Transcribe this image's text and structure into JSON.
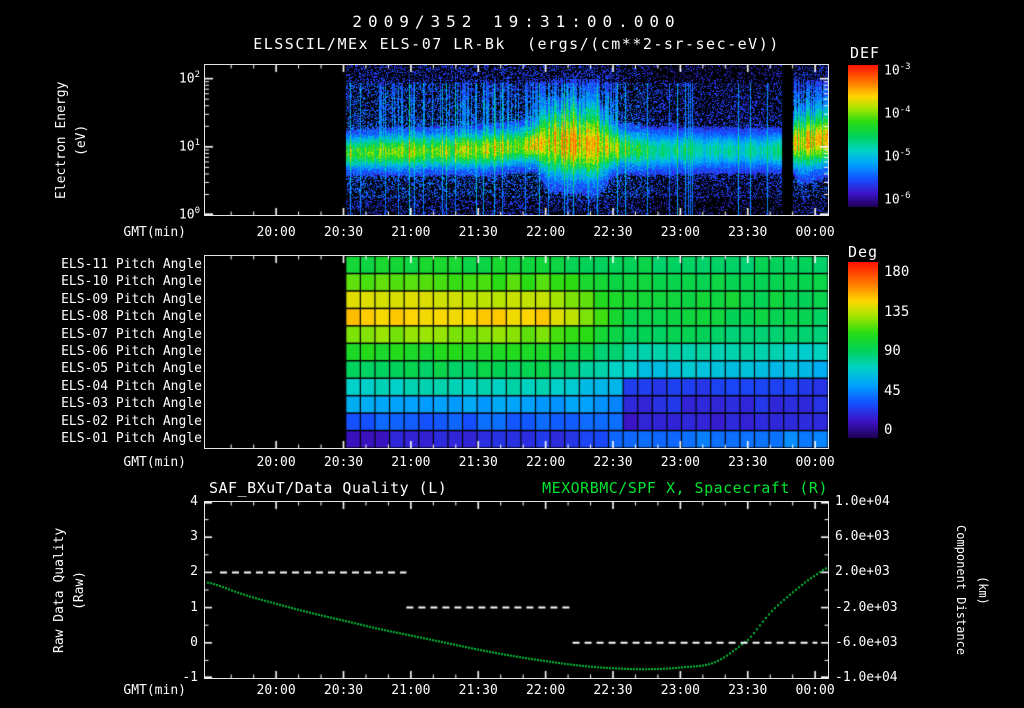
{
  "header": {
    "title_line1": "2009/352 19:31:00.000",
    "title_line2": "ELSSCIL/MEx ELS-07 LR-Bk  (ergs/(cm**2-sr-sec-eV))"
  },
  "time_axis": {
    "label": "GMT(min)",
    "start_label": "19:31",
    "ticks": [
      {
        "label": "20:00",
        "t_min": 29
      },
      {
        "label": "20:30",
        "t_min": 59
      },
      {
        "label": "21:00",
        "t_min": 89
      },
      {
        "label": "21:30",
        "t_min": 119
      },
      {
        "label": "22:00",
        "t_min": 149
      },
      {
        "label": "22:30",
        "t_min": 179
      },
      {
        "label": "23:00",
        "t_min": 209
      },
      {
        "label": "23:30",
        "t_min": 239
      },
      {
        "label": "00:00",
        "t_min": 269
      }
    ]
  },
  "panel1": {
    "ylabel_line1": "Electron Energy",
    "ylabel_line2": "(eV)",
    "y_tick_exponents": [
      2,
      1,
      0
    ],
    "colorbar": {
      "label": "DEF",
      "tick_exponents": [
        -3,
        -4,
        -5,
        -6
      ]
    }
  },
  "panel2": {
    "row_labels": [
      "ELS-11 Pitch Angle",
      "ELS-10 Pitch Angle",
      "ELS-09 Pitch Angle",
      "ELS-08 Pitch Angle",
      "ELS-07 Pitch Angle",
      "ELS-06 Pitch Angle",
      "ELS-05 Pitch Angle",
      "ELS-04 Pitch Angle",
      "ELS-03 Pitch Angle",
      "ELS-02 Pitch Angle",
      "ELS-01 Pitch Angle"
    ],
    "colorbar": {
      "label": "Deg",
      "ticks": [
        "180",
        "135",
        "90",
        "45",
        "0"
      ]
    }
  },
  "panel3": {
    "title_left": "SAF_BXuT/Data Quality (L)",
    "title_right": "MEXORBMC/SPF X, Spacecraft (R)",
    "ylabel_left_line1": "Raw Data Quality",
    "ylabel_left_line2": "(Raw)",
    "ylabel_right_line1": "Component Distance",
    "ylabel_right_line2": "(km)",
    "left_ticks": [
      "4",
      "3",
      "2",
      "1",
      "0",
      "-1"
    ],
    "right_ticks": [
      "1.0e+04",
      "6.0e+03",
      "2.0e+03",
      "-2.0e+03",
      "-6.0e+03",
      "-1.0e+04"
    ]
  },
  "colors": {
    "background": "#000000",
    "text": "#ffffff",
    "green_text": "#00e432",
    "curve_green": "#00c238",
    "colormap_stops": [
      [
        0.0,
        [
          30,
          0,
          80
        ]
      ],
      [
        0.1,
        [
          60,
          20,
          200
        ]
      ],
      [
        0.2,
        [
          20,
          80,
          255
        ]
      ],
      [
        0.3,
        [
          0,
          160,
          255
        ]
      ],
      [
        0.4,
        [
          0,
          210,
          200
        ]
      ],
      [
        0.5,
        [
          0,
          210,
          90
        ]
      ],
      [
        0.6,
        [
          40,
          220,
          20
        ]
      ],
      [
        0.7,
        [
          170,
          230,
          0
        ]
      ],
      [
        0.78,
        [
          255,
          215,
          0
        ]
      ],
      [
        0.87,
        [
          255,
          130,
          0
        ]
      ],
      [
        1.0,
        [
          255,
          20,
          0
        ]
      ]
    ]
  },
  "chart_data": [
    {
      "type": "heatmap",
      "name": "electron-energy-spectrogram",
      "title": "ELSSCIL/MEx ELS-07 LR-Bk",
      "units": "ergs/(cm**2-sr-sec-eV)",
      "ylabel": "Electron Energy (eV)",
      "y_log10_range": [
        0,
        2.2
      ],
      "colorbar_label": "DEF",
      "colorbar_log10_range": [
        -6,
        -3
      ],
      "time_axis_start": "19:31",
      "data_start_min": 60,
      "data_end_min": 275,
      "data_gaps_min": [
        [
          254,
          259
        ]
      ],
      "band_center_log10eV_keypoints": [
        [
          60,
          0.92
        ],
        [
          120,
          0.96
        ],
        [
          150,
          1.05
        ],
        [
          175,
          1.0
        ],
        [
          195,
          0.95
        ],
        [
          255,
          0.95
        ],
        [
          259,
          1.05
        ],
        [
          275,
          1.1
        ]
      ],
      "band_intensity_keypoints": [
        [
          60,
          0.58
        ],
        [
          75,
          0.62
        ],
        [
          110,
          0.66
        ],
        [
          122,
          0.74
        ],
        [
          135,
          0.68
        ],
        [
          148,
          0.8
        ],
        [
          158,
          0.86
        ],
        [
          170,
          0.8
        ],
        [
          182,
          0.62
        ],
        [
          192,
          0.46
        ],
        [
          215,
          0.38
        ],
        [
          248,
          0.4
        ],
        [
          254,
          0.46
        ],
        [
          259,
          0.74
        ],
        [
          266,
          0.8
        ],
        [
          275,
          0.7
        ]
      ],
      "band_width_log10_keypoints": [
        [
          60,
          0.15
        ],
        [
          145,
          0.17
        ],
        [
          150,
          0.3
        ],
        [
          172,
          0.3
        ],
        [
          180,
          0.17
        ],
        [
          258,
          0.16
        ],
        [
          262,
          0.26
        ],
        [
          275,
          0.22
        ]
      ],
      "noise_scale_keypoints": [
        [
          60,
          1
        ],
        [
          190,
          1
        ],
        [
          200,
          0.55
        ],
        [
          250,
          0.55
        ],
        [
          259,
          0.9
        ],
        [
          275,
          0.9
        ]
      ]
    },
    {
      "type": "heatmap",
      "name": "pitch-angle-grid",
      "value_units": "Deg",
      "value_range": [
        0,
        180
      ],
      "cell_minutes": 6.5,
      "data_start_min": 60,
      "data_end_min": 275,
      "rows": [
        {
          "label": "ELS-11 Pitch Angle",
          "angle_keypoints": [
            [
              60,
              100
            ],
            [
              150,
              97
            ],
            [
              185,
              91
            ],
            [
              275,
              89
            ]
          ]
        },
        {
          "label": "ELS-10 Pitch Angle",
          "angle_keypoints": [
            [
              60,
              115
            ],
            [
              150,
              111
            ],
            [
              185,
              95
            ],
            [
              275,
              92
            ]
          ]
        },
        {
          "label": "ELS-09 Pitch Angle",
          "angle_keypoints": [
            [
              60,
              135
            ],
            [
              150,
              131
            ],
            [
              185,
              98
            ],
            [
              275,
              94
            ]
          ]
        },
        {
          "label": "ELS-08 Pitch Angle",
          "angle_keypoints": [
            [
              60,
              143
            ],
            [
              150,
              140
            ],
            [
              185,
              97
            ],
            [
              275,
              92
            ]
          ]
        },
        {
          "label": "ELS-07 Pitch Angle",
          "angle_keypoints": [
            [
              60,
              122
            ],
            [
              150,
              119
            ],
            [
              185,
              90
            ],
            [
              275,
              84
            ]
          ]
        },
        {
          "label": "ELS-06 Pitch Angle",
          "angle_keypoints": [
            [
              60,
              105
            ],
            [
              150,
              103
            ],
            [
              185,
              80
            ],
            [
              275,
              73
            ]
          ]
        },
        {
          "label": "ELS-05 Pitch Angle",
          "angle_keypoints": [
            [
              60,
              92
            ],
            [
              150,
              90
            ],
            [
              185,
              68
            ],
            [
              275,
              60
            ]
          ]
        },
        {
          "label": "ELS-04 Pitch Angle",
          "angle_keypoints": [
            [
              60,
              75
            ],
            [
              150,
              74
            ],
            [
              183,
              60
            ],
            [
              186,
              31
            ],
            [
              275,
              30
            ]
          ]
        },
        {
          "label": "ELS-03 Pitch Angle",
          "angle_keypoints": [
            [
              60,
              55
            ],
            [
              150,
              55
            ],
            [
              183,
              48
            ],
            [
              186,
              26
            ],
            [
              275,
              25
            ]
          ]
        },
        {
          "label": "ELS-02 Pitch Angle",
          "angle_keypoints": [
            [
              60,
              38
            ],
            [
              150,
              40
            ],
            [
              183,
              42
            ],
            [
              186,
              21
            ],
            [
              275,
              22
            ]
          ]
        },
        {
          "label": "ELS-01 Pitch Angle",
          "angle_keypoints": [
            [
              60,
              18
            ],
            [
              150,
              26
            ],
            [
              183,
              38
            ],
            [
              186,
              44
            ],
            [
              275,
              48
            ]
          ]
        }
      ]
    },
    {
      "type": "line",
      "name": "quality-and-spacecraft-distance",
      "left_axis": {
        "label": "Raw Data Quality (Raw)",
        "range": [
          -1,
          4
        ]
      },
      "right_axis": {
        "label": "Component Distance (km)",
        "range": [
          -10000,
          10000
        ]
      },
      "series": [
        {
          "name": "SAF_BXuT/Data Quality (L)",
          "axis": "left",
          "style": "dashed",
          "color": "#ffffff",
          "segments": [
            {
              "value": 2,
              "t_min": [
                4,
                87
              ]
            },
            {
              "value": 1,
              "t_min": [
                87,
                161
              ]
            },
            {
              "value": 0,
              "t_min": [
                161,
                270
              ]
            }
          ]
        },
        {
          "name": "MEXORBMC/SPF X, Spacecraft (R)",
          "axis": "right",
          "style": "dotted",
          "color": "#00c238",
          "points_t_min_km": [
            [
              -3,
              900
            ],
            [
              14,
              -500
            ],
            [
              29,
              -1600
            ],
            [
              44,
              -2600
            ],
            [
              59,
              -3500
            ],
            [
              74,
              -4400
            ],
            [
              89,
              -5200
            ],
            [
              104,
              -6000
            ],
            [
              119,
              -6800
            ],
            [
              134,
              -7500
            ],
            [
              149,
              -8100
            ],
            [
              164,
              -8600
            ],
            [
              179,
              -8900
            ],
            [
              194,
              -9000
            ],
            [
              209,
              -8800
            ],
            [
              224,
              -8200
            ],
            [
              239,
              -5600
            ],
            [
              249,
              -2500
            ],
            [
              259,
              -200
            ],
            [
              269,
              1700
            ],
            [
              275,
              2600
            ]
          ]
        }
      ]
    }
  ]
}
